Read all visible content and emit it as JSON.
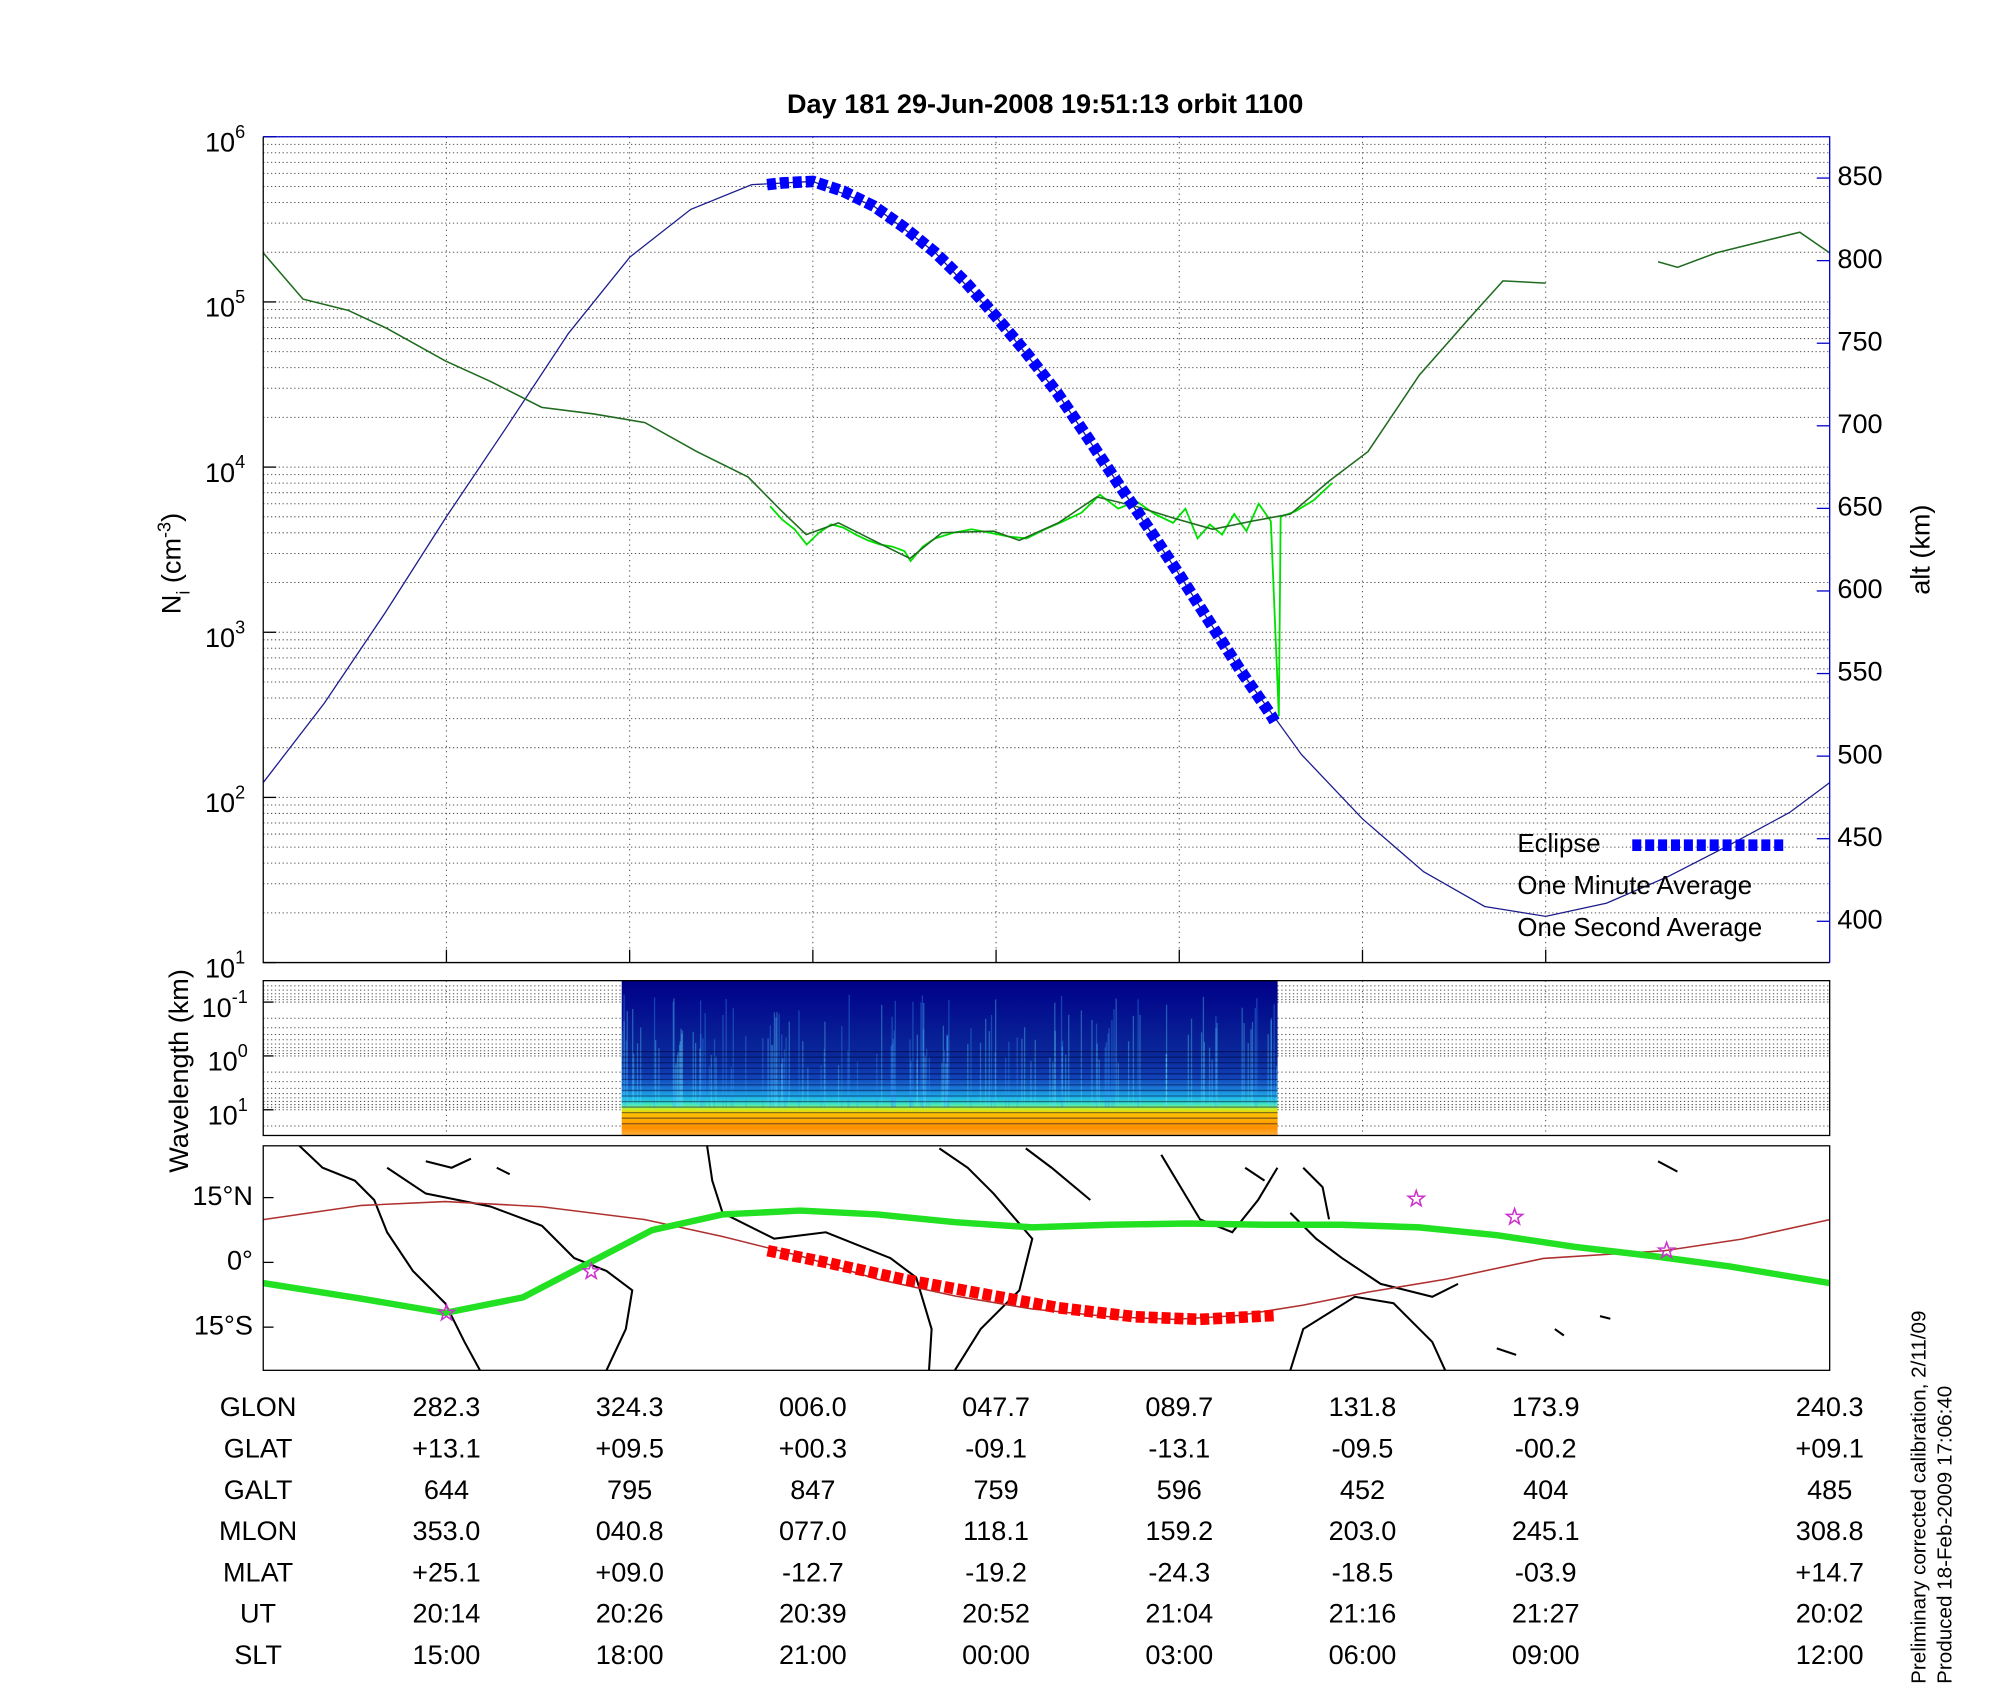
{
  "chart_data": [
    {
      "type": "line",
      "title": "Day 181  29-Jun-2008 19:51:13   orbit 1100",
      "ylabel": [
        "N",
        "i",
        " (cm",
        "-3",
        ")"
      ],
      "y2label": "alt (km)",
      "xlim": [
        12,
        37.65
      ],
      "xticks": [
        15,
        18,
        21,
        24,
        27,
        30,
        33
      ],
      "ylog": true,
      "ylim": [
        10,
        1000000
      ],
      "yticks": [
        {
          "value": 10,
          "label": "10",
          "exponent": "1"
        },
        {
          "value": 100,
          "label": "10",
          "exponent": "2"
        },
        {
          "value": 1000,
          "label": "10",
          "exponent": "3"
        },
        {
          "value": 10000,
          "label": "10",
          "exponent": "4"
        },
        {
          "value": 100000,
          "label": "10",
          "exponent": "5"
        },
        {
          "value": 1000000,
          "label": "10",
          "exponent": "6"
        }
      ],
      "y2lim": [
        375,
        875
      ],
      "y2ticks": [
        400,
        450,
        500,
        550,
        600,
        650,
        700,
        750,
        800,
        850
      ],
      "grid": true,
      "legend": "lower right",
      "series": [
        {
          "color": "#1c1c8c",
          "axis": "y2",
          "x": [
            12,
            13,
            14,
            15,
            16,
            17,
            18,
            19,
            20,
            21,
            22,
            23,
            24,
            25,
            26,
            27,
            28,
            29,
            30,
            31,
            32,
            33,
            34,
            35,
            36,
            37,
            37.65
          ],
          "values": [
            484,
            532,
            587,
            645,
            700,
            756,
            802,
            831,
            846,
            848,
            833,
            805,
            766,
            720,
            665,
            610,
            552,
            501,
            462,
            430,
            409,
            403,
            411,
            427,
            446,
            466,
            484
          ]
        },
        {
          "name": "One Second Average",
          "color": "#00e000",
          "x": [
            20.3,
            20.5,
            20.7,
            20.9,
            21.1,
            21.3,
            21.5,
            21.7,
            21.9,
            22.1,
            22.3,
            22.5,
            22.6,
            22.8,
            23.0,
            23.3,
            23.6,
            23.9,
            24.2,
            24.5,
            24.8,
            25.1,
            25.4,
            25.7,
            26.0,
            26.3,
            26.6,
            26.9,
            27.1,
            27.3,
            27.5,
            27.7,
            27.9,
            28.1,
            28.3,
            28.5,
            28.63,
            28.66,
            28.9,
            29.2,
            29.5
          ],
          "values": [
            5800,
            4800,
            4200,
            3400,
            4000,
            4500,
            4300,
            3900,
            3600,
            3400,
            3300,
            3100,
            2700,
            3300,
            3700,
            4000,
            4200,
            4000,
            3800,
            3700,
            4200,
            4700,
            5300,
            6800,
            5600,
            6200,
            5200,
            4600,
            5600,
            3700,
            4500,
            3900,
            5200,
            4100,
            6000,
            4700,
            310,
            5000,
            5400,
            6300,
            8000
          ]
        },
        {
          "name": "One Minute Average",
          "color": "#1f6b1f",
          "x": [
            12.0,
            12.65,
            13.39,
            14.03,
            14.98,
            15.72,
            16.56,
            17.41,
            18.25,
            19.1,
            19.94,
            20.47,
            20.89,
            21.42,
            22.06,
            22.59,
            23.11,
            23.96,
            24.38,
            25.02,
            25.65,
            26.28,
            26.92,
            27.55,
            28.18,
            28.82,
            29.45,
            30.09,
            30.93,
            31.78,
            32.3,
            33.0,
            33.5,
            34.84,
            35.16,
            35.79,
            36.64,
            37.16,
            37.65
          ],
          "values": [
            198000,
            104000,
            89000,
            69000,
            44000,
            33000,
            23000,
            21000,
            18600,
            12400,
            8700,
            5500,
            3900,
            4600,
            3500,
            2800,
            4000,
            4100,
            3600,
            4600,
            6600,
            5800,
            4900,
            4200,
            4700,
            5200,
            8200,
            12400,
            36000,
            82000,
            134000,
            130000,
            null,
            175000,
            162000,
            198000,
            237000,
            264000,
            198000
          ]
        },
        {
          "name": "Eclipse",
          "color": "#0000ff",
          "axis": "y2",
          "x": [
            20.25,
            20.5,
            21,
            21.5,
            22,
            22.5,
            23,
            23.5,
            24,
            24.5,
            25,
            25.5,
            26,
            26.5,
            27,
            27.5,
            28,
            28.5,
            28.56
          ],
          "values": [
            846,
            847,
            848,
            842,
            833,
            820,
            805,
            787,
            766,
            744,
            720,
            693,
            665,
            638,
            610,
            581,
            552,
            525,
            521
          ]
        }
      ]
    },
    {
      "type": "spectrogram",
      "ylabel": "Wavelength (km)",
      "ylog": true,
      "ylim": [
        30,
        0.04
      ],
      "yticks": [
        {
          "value": 0.1,
          "label": "10",
          "exponent": "-1"
        },
        {
          "value": 1,
          "label": "10",
          "exponent": "0"
        },
        {
          "value": 10,
          "label": "10",
          "exponent": "1"
        }
      ],
      "xrange": [
        17.87,
        28.61
      ]
    },
    {
      "type": "map",
      "ylim": [
        -25,
        27
      ],
      "yticks": [
        {
          "value": 15,
          "label": "15°N"
        },
        {
          "value": 0,
          "label": "0°"
        },
        {
          "value": -15,
          "label": "15°S"
        }
      ],
      "series": [
        {
          "color": "#b03030",
          "style": "thin",
          "x": [
            12.0,
            13.61,
            14.98,
            16.56,
            18.25,
            19.52,
            20.79,
            22.06,
            23.33,
            24.59,
            25.86,
            26.92,
            27.97,
            29.03,
            30.09,
            31.36,
            32.96,
            34.94,
            36.21,
            37.65
          ],
          "values": [
            9.9,
            13.2,
            14.1,
            12.9,
            9.9,
            6.0,
            1.5,
            -3.9,
            -7.8,
            -10.8,
            -12.6,
            -13.2,
            -12.3,
            -9.9,
            -6.9,
            -3.9,
            0.9,
            2.7,
            5.4,
            9.9
          ]
        },
        {
          "color": "#22e022",
          "style": "thick",
          "x": [
            12.0,
            13.61,
            14.98,
            16.25,
            17.31,
            18.37,
            19.52,
            20.79,
            22.06,
            23.33,
            24.59,
            25.86,
            27.13,
            28.39,
            29.66,
            30.93,
            32.2,
            33.47,
            34.73,
            36.0,
            37.65
          ],
          "values": [
            -4.8,
            -8.4,
            -11.7,
            -8.1,
            -0.3,
            7.5,
            11.1,
            12.0,
            11.1,
            9.3,
            8.1,
            8.7,
            9.0,
            8.7,
            8.7,
            8.1,
            6.3,
            3.6,
            1.5,
            -0.9,
            -4.8
          ]
        },
        {
          "color": "#ff0000",
          "style": "squares",
          "x": [
            20.26,
            21.21,
            22.48,
            23.75,
            25.02,
            26.28,
            27.34,
            28.56
          ],
          "values": [
            2.7,
            0.0,
            -3.9,
            -7.2,
            -10.5,
            -12.6,
            -13.2,
            -12.3
          ]
        },
        {
          "color": "#cc33cc",
          "style": "stars",
          "x": [
            15.0,
            17.37,
            30.88,
            32.49,
            34.98
          ],
          "values": [
            -11.7,
            -2.1,
            14.7,
            10.5,
            2.7
          ]
        }
      ]
    }
  ],
  "table": {
    "rows": [
      [
        "GLON",
        "282.3",
        "324.3",
        "006.0",
        "047.7",
        "089.7",
        "131.8",
        "173.9",
        "240.3"
      ],
      [
        "GLAT",
        "+13.1",
        "+09.5",
        "+00.3",
        "-09.1",
        "-13.1",
        "-09.5",
        "-00.2",
        "+09.1"
      ],
      [
        "GALT",
        "644",
        "795",
        "847",
        "759",
        "596",
        "452",
        "404",
        "485"
      ],
      [
        "MLON",
        "353.0",
        "040.8",
        "077.0",
        "118.1",
        "159.2",
        "203.0",
        "245.1",
        "308.8"
      ],
      [
        "MLAT",
        "+25.1",
        "+09.0",
        "-12.7",
        "-19.2",
        "-24.3",
        "-18.5",
        "-03.9",
        "+14.7"
      ],
      [
        "UT",
        "20:14",
        "20:26",
        "20:39",
        "20:52",
        "21:04",
        "21:16",
        "21:27",
        "20:02"
      ],
      [
        "SLT",
        "15:00",
        "18:00",
        "21:00",
        "00:00",
        "03:00",
        "06:00",
        "09:00",
        "12:00"
      ]
    ]
  },
  "footnotes": [
    "Preliminary corrected calibration, 2/11/09",
    "Produced 18-Feb-2009 17:06:40"
  ]
}
